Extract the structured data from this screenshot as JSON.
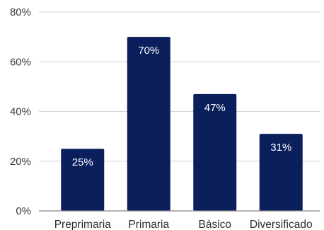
{
  "chart_data": {
    "type": "bar",
    "categories": [
      "Preprimaria",
      "Primaria",
      "Básico",
      "Diversificado"
    ],
    "values": [
      25,
      70,
      47,
      31
    ],
    "data_labels": [
      "25%",
      "70%",
      "47%",
      "31%"
    ],
    "title": "",
    "xlabel": "",
    "ylabel": "",
    "ylim": [
      0,
      80
    ],
    "yticks": [
      0,
      20,
      40,
      60,
      80
    ],
    "ytick_labels": [
      "0%",
      "20%",
      "40%",
      "60%",
      "80%"
    ],
    "grid": "horizontal",
    "legend": "none",
    "bar_color": "#0b1f5c",
    "grid_color": "#d4d4d4",
    "axis_color": "#888888"
  }
}
